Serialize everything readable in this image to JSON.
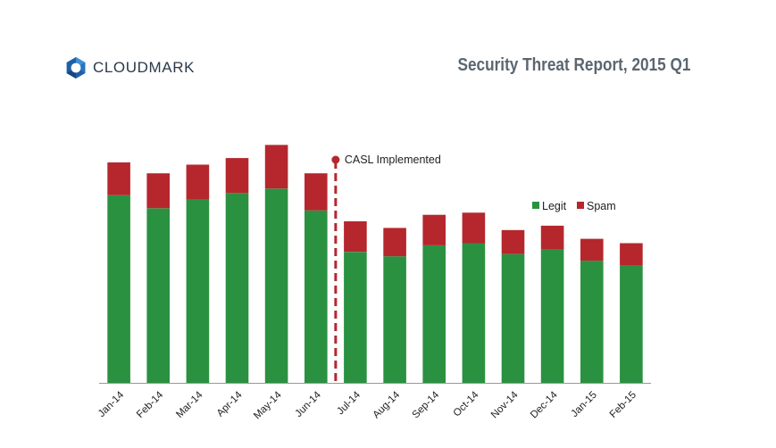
{
  "header": {
    "logo_text": "CLOUDMARK",
    "logo_icon": "hexagon-ring-logo-icon",
    "report_title": "Security Threat Report, 2015 Q1"
  },
  "chart_data": {
    "type": "bar",
    "stacked": true,
    "categories": [
      "Jan-14",
      "Feb-14",
      "Mar-14",
      "Apr-14",
      "May-14",
      "Jun-14",
      "Jul-14",
      "Aug-14",
      "Sep-14",
      "Oct-14",
      "Nov-14",
      "Dec-14",
      "Jan-15",
      "Feb-15"
    ],
    "series": [
      {
        "name": "Legit",
        "color": "#2a9140",
        "values": [
          86,
          80,
          84,
          87,
          89,
          79,
          60,
          58,
          63,
          64,
          59,
          61,
          56,
          54
        ]
      },
      {
        "name": "Spam",
        "color": "#b5272d",
        "values": [
          15,
          16,
          16,
          16,
          20,
          17,
          14,
          13,
          14,
          14,
          11,
          11,
          10,
          10
        ]
      }
    ],
    "ylim": [
      0,
      110
    ],
    "grid": false,
    "legend_position": "top-right",
    "annotation": {
      "after_category": "Jun-14",
      "label": "CASL Implemented",
      "color": "#b5272d"
    }
  }
}
